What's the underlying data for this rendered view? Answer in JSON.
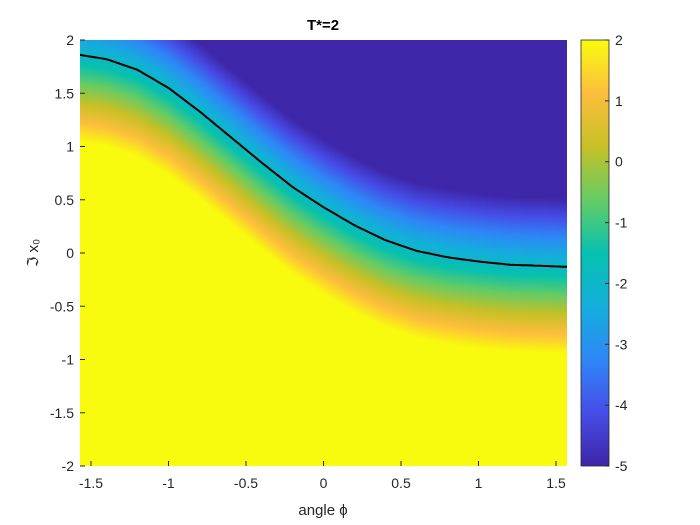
{
  "chart_data": {
    "type": "heatmap",
    "title": "T*=2",
    "xlabel": "angle ϕ",
    "ylabel": "ℑ x₀",
    "xlim": [
      -1.5708,
      1.5708
    ],
    "ylim": [
      -2,
      2
    ],
    "x_ticks": [
      -1.5,
      -1,
      -0.5,
      0,
      0.5,
      1,
      1.5
    ],
    "x_tick_labels": [
      "-1.5",
      "-1",
      "-0.5",
      "0",
      "0.5",
      "1",
      "1.5"
    ],
    "y_ticks": [
      2,
      1.5,
      1,
      0.5,
      0,
      -0.5,
      -1,
      -1.5,
      -2
    ],
    "y_tick_labels": [
      "2",
      "1.5",
      "1",
      "0.5",
      "0",
      "-0.5",
      "-1",
      "-1.5",
      "-2"
    ],
    "colorbar": {
      "limits": [
        -5,
        2
      ],
      "ticks": [
        2,
        1,
        0,
        -1,
        -2,
        -3,
        -4,
        -5
      ],
      "tick_labels": [
        "2",
        "1",
        "0",
        "-1",
        "-2",
        "-3",
        "-4",
        "-5"
      ],
      "colormap": "parula"
    },
    "zero_contour": {
      "color": "#000000",
      "x": [
        -1.5708,
        -1.4,
        -1.2,
        -1.0,
        -0.8,
        -0.6,
        -0.4,
        -0.2,
        0.0,
        0.2,
        0.4,
        0.6,
        0.8,
        1.0,
        1.2,
        1.4,
        1.5708
      ],
      "y": [
        1.86,
        1.82,
        1.72,
        1.55,
        1.33,
        1.09,
        0.85,
        0.62,
        0.43,
        0.26,
        0.12,
        0.02,
        -0.04,
        -0.08,
        -0.11,
        -0.12,
        -0.13
      ]
    },
    "value_model": {
      "description": "value ~ 2 above the contour offset, decreasing linearly with height above the contour, saturating at -5",
      "slope_per_unit_y": -4.8,
      "offset_below_curve": -0.4
    }
  }
}
